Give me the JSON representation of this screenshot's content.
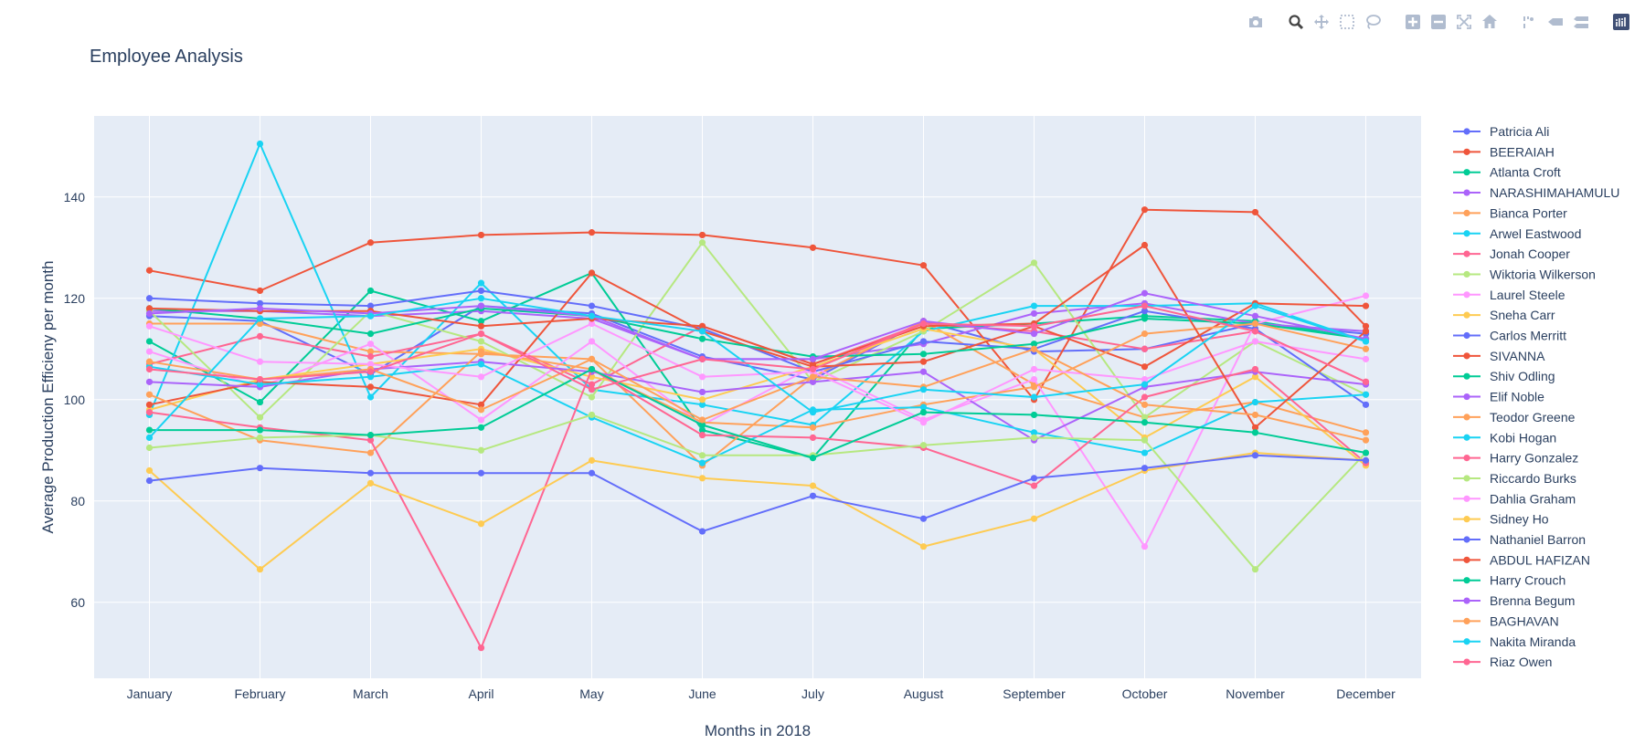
{
  "modebar": {
    "icons": [
      "camera-icon",
      "zoom-icon",
      "pan-icon",
      "box-select-icon",
      "lasso-select-icon",
      "zoom-in-icon",
      "zoom-out-icon",
      "autoscale-icon",
      "reset-axes-icon",
      "spike-lines-icon",
      "hover-closest-icon",
      "hover-compare-icon",
      "plotly-logo-icon"
    ],
    "color": "#b0bccf",
    "active_color": "#444444",
    "logo_color": "#3f4f75"
  },
  "chart_data": {
    "type": "line",
    "title": "Employee Analysis",
    "xlabel": "Months in 2018",
    "ylabel": "Average Production Efficieny per month",
    "ylim": [
      45,
      156
    ],
    "yticks": [
      60,
      80,
      100,
      120,
      140
    ],
    "grid": true,
    "legend_position": "right",
    "plot_bgcolor": "#e5ecf6",
    "categories": [
      "January",
      "February",
      "March",
      "April",
      "May",
      "June",
      "July",
      "August",
      "September",
      "October",
      "November",
      "December"
    ],
    "series": [
      {
        "name": "Patricia Ali",
        "color": "#636efa",
        "values": [
          116.5,
          115.5,
          105,
          118.5,
          117,
          108.5,
          104,
          115.5,
          109.5,
          110,
          115,
          113
        ]
      },
      {
        "name": "BEERAIAH",
        "color": "#ef553b",
        "values": [
          125.5,
          121.5,
          131,
          132.5,
          133,
          132.5,
          130,
          126.5,
          100,
          137.5,
          137,
          114.5
        ]
      },
      {
        "name": "Atlanta Croft",
        "color": "#00cc96",
        "values": [
          111.5,
          99.5,
          121.5,
          115.5,
          125,
          94,
          88.5,
          114,
          115,
          116.5,
          115.5,
          112
        ]
      },
      {
        "name": "NARASHIMAHAMULU",
        "color": "#ab63fa",
        "values": [
          117.5,
          117.5,
          116.5,
          117.5,
          116,
          108,
          108,
          111,
          117,
          119,
          115,
          113.5
        ]
      },
      {
        "name": "Bianca Porter",
        "color": "#ffa15a",
        "values": [
          115,
          115,
          109.5,
          109,
          108,
          87,
          104.5,
          115.5,
          103,
          96.5,
          99.5,
          93.5
        ]
      },
      {
        "name": "Arwel Eastwood",
        "color": "#19d3f3",
        "values": [
          97,
          150.5,
          100.5,
          123,
          102,
          99,
          95,
          113.5,
          118.5,
          118.5,
          119,
          111.5
        ]
      },
      {
        "name": "Jonah Cooper",
        "color": "#ff6692",
        "values": [
          107,
          112.5,
          108.5,
          113,
          103,
          114.5,
          107,
          115,
          113.5,
          110,
          113.5,
          103.5
        ]
      },
      {
        "name": "Wiktoria Wilkerson",
        "color": "#b6e880",
        "values": [
          117.5,
          96.5,
          117.5,
          111.5,
          100.5,
          131,
          103.5,
          113.5,
          127,
          96.5,
          111.5,
          101
        ]
      },
      {
        "name": "Laurel Steele",
        "color": "#ff97ff",
        "values": [
          109.5,
          102.5,
          111,
          96,
          111.5,
          95,
          106.5,
          96,
          104,
          71,
          115,
          120.5
        ]
      },
      {
        "name": "Sneha Carr",
        "color": "#fecb52",
        "values": [
          98,
          104,
          107,
          110,
          104.5,
          100,
          106.5,
          114,
          110,
          92.5,
          104.5,
          87
        ]
      },
      {
        "name": "Carlos Merritt",
        "color": "#636efa",
        "values": [
          120,
          119,
          118.5,
          121.5,
          118.5,
          114,
          105.5,
          111.5,
          110,
          117.5,
          114,
          99
        ]
      },
      {
        "name": "SIVANNA",
        "color": "#ef553b",
        "values": [
          99,
          103.5,
          102.5,
          99,
          125,
          113.5,
          106.5,
          107.5,
          114.5,
          106.5,
          119,
          118.5
        ]
      },
      {
        "name": "Shiv Odling",
        "color": "#00cc96",
        "values": [
          118,
          116,
          113,
          118,
          116.5,
          112,
          108.5,
          109,
          111,
          116,
          115,
          112
        ]
      },
      {
        "name": "Elif Noble",
        "color": "#ab63fa",
        "values": [
          103.5,
          102.5,
          106,
          107.5,
          105.5,
          101.5,
          103.5,
          105.5,
          92,
          102.5,
          105.5,
          103
        ]
      },
      {
        "name": "Teodor Greene",
        "color": "#ffa15a",
        "values": [
          101,
          92,
          89.5,
          109.5,
          106,
          95.5,
          94.5,
          99,
          102.5,
          113,
          115,
          110
        ]
      },
      {
        "name": "Kobi Hogan",
        "color": "#19d3f3",
        "values": [
          106.5,
          103,
          104.5,
          107,
          96.5,
          87.5,
          98,
          98.5,
          93.5,
          89.5,
          99.5,
          101
        ]
      },
      {
        "name": "Harry Gonzalez",
        "color": "#ff6692",
        "values": [
          97.5,
          94.5,
          92,
          51,
          106,
          93,
          92.5,
          90.5,
          83,
          100.5,
          106,
          87.5
        ]
      },
      {
        "name": "Riccardo Burks",
        "color": "#b6e880",
        "values": [
          90.5,
          92.5,
          93,
          90,
          97,
          89,
          89,
          91,
          92.5,
          92,
          66.5,
          89.5
        ]
      },
      {
        "name": "Dahlia Graham",
        "color": "#ff97ff",
        "values": [
          114.5,
          107.5,
          107,
          104.5,
          115,
          104.5,
          105.5,
          95.5,
          106,
          104,
          111.5,
          108
        ]
      },
      {
        "name": "Sidney Ho",
        "color": "#fecb52",
        "values": [
          86,
          66.5,
          83.5,
          75.5,
          88,
          84.5,
          83,
          71,
          76.5,
          86,
          89.5,
          88
        ]
      },
      {
        "name": "Nathaniel Barron",
        "color": "#636efa",
        "values": [
          84,
          86.5,
          85.5,
          85.5,
          85.5,
          74,
          81,
          76.5,
          84.5,
          86.5,
          89,
          88
        ]
      },
      {
        "name": "ABDUL HAFIZAN",
        "color": "#ef553b",
        "values": [
          118,
          117.5,
          117.5,
          114.5,
          116,
          114.5,
          107,
          114.5,
          115,
          130.5,
          94.5,
          113.5
        ]
      },
      {
        "name": "Harry Crouch",
        "color": "#00cc96",
        "values": [
          94,
          94,
          93,
          94.5,
          106,
          95,
          88.5,
          97.5,
          97,
          95.5,
          93.5,
          89.5
        ]
      },
      {
        "name": "Brenna Begum",
        "color": "#ab63fa",
        "values": [
          117,
          118,
          117,
          118.5,
          116.5,
          108,
          108,
          115.5,
          113,
          121,
          116.5,
          112
        ]
      },
      {
        "name": "BAGHAVAN",
        "color": "#ffa15a",
        "values": [
          107.5,
          104,
          106,
          98,
          108,
          96,
          104.5,
          102.5,
          110,
          99,
          97,
          92
        ]
      },
      {
        "name": "Nakita Miranda",
        "color": "#19d3f3",
        "values": [
          92.5,
          116,
          116.5,
          120,
          116.5,
          113.5,
          97.5,
          102,
          100.5,
          103,
          118.5,
          111.5
        ]
      },
      {
        "name": "Riaz Owen",
        "color": "#ff6692",
        "values": [
          106,
          104,
          105.5,
          113,
          102,
          108,
          106,
          115,
          114.5,
          118.5,
          113.5,
          103.5
        ]
      }
    ]
  }
}
